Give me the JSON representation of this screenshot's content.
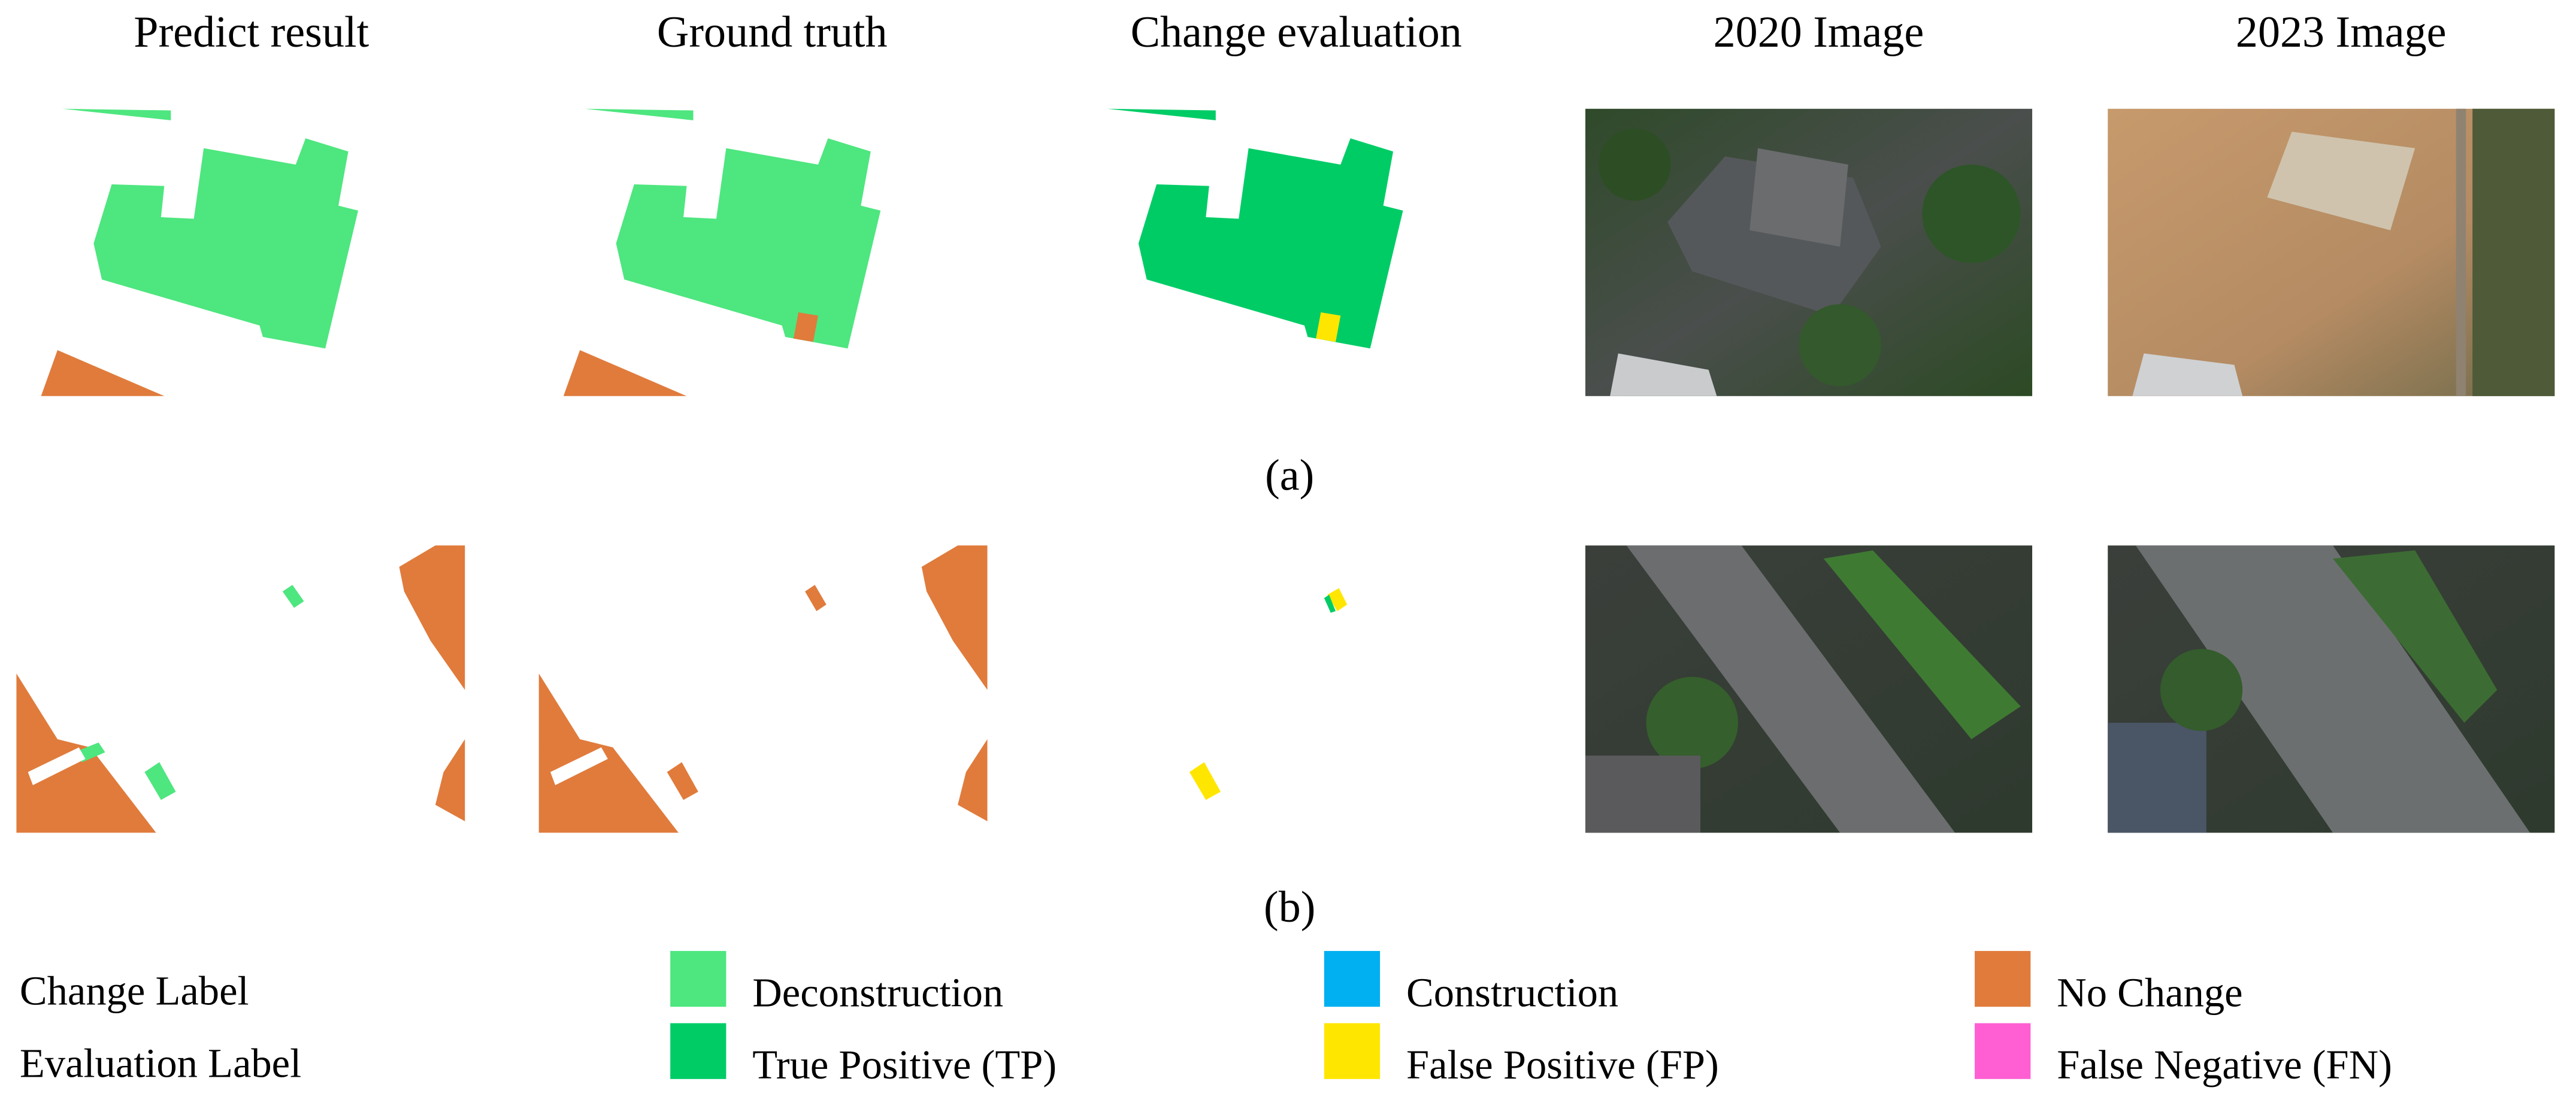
{
  "header": {
    "columns": [
      "Predict result",
      "Ground truth",
      "Change evaluation",
      "2020 Image",
      "2023 Image"
    ]
  },
  "panels": [
    {
      "label": "(a)"
    },
    {
      "label": "(b)"
    }
  ],
  "legend": {
    "rows": [
      {
        "label": "Change Label",
        "items": [
          {
            "name": "Deconstruction",
            "color": "#4ee67f"
          },
          {
            "name": "Construction",
            "color": "#00b0f0"
          },
          {
            "name": "No Change",
            "color": "#e07b3c"
          }
        ]
      },
      {
        "label": "Evaluation Label",
        "items": [
          {
            "name": "True Positive (TP)",
            "color": "#00cc66"
          },
          {
            "name": "False Positive (FP)",
            "color": "#ffe600"
          },
          {
            "name": "False Negative (FN)",
            "color": "#ff5fd2"
          }
        ]
      }
    ]
  }
}
